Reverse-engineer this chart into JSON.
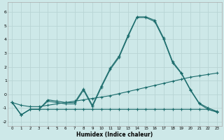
{
  "xlabel": "Humidex (Indice chaleur)",
  "background_color": "#cde8e8",
  "grid_color": "#b8d4d4",
  "line_color": "#1a6b6b",
  "xlim": [
    -0.5,
    23.5
  ],
  "ylim": [
    -2.3,
    6.7
  ],
  "yticks": [
    -2,
    -1,
    0,
    1,
    2,
    3,
    4,
    5,
    6
  ],
  "xticks": [
    0,
    1,
    2,
    3,
    4,
    5,
    6,
    7,
    8,
    9,
    10,
    11,
    12,
    13,
    14,
    15,
    16,
    17,
    18,
    19,
    20,
    21,
    22,
    23
  ],
  "series": [
    {
      "x": [
        0,
        1,
        2,
        3,
        4,
        5,
        6,
        7,
        8,
        9,
        10,
        11,
        12,
        13,
        14,
        15,
        16,
        17,
        18,
        19,
        20,
        21,
        22,
        23
      ],
      "y": [
        -0.6,
        -1.5,
        -1.1,
        -1.1,
        -1.1,
        -1.1,
        -1.1,
        -1.1,
        -1.1,
        -1.1,
        -1.1,
        -1.1,
        -1.1,
        -1.1,
        -1.1,
        -1.1,
        -1.1,
        -1.1,
        -1.1,
        -1.1,
        -1.1,
        -1.1,
        -1.1,
        -1.3
      ]
    },
    {
      "x": [
        0,
        1,
        2,
        3,
        4,
        5,
        6,
        7,
        8,
        9,
        10,
        11,
        12,
        13,
        14,
        15,
        16,
        17,
        18,
        19,
        20,
        21,
        22,
        23
      ],
      "y": [
        -0.6,
        -1.5,
        -1.1,
        -1.1,
        -0.5,
        -0.6,
        -0.7,
        -0.7,
        0.3,
        -0.9,
        0.5,
        1.8,
        2.7,
        4.2,
        5.6,
        5.6,
        5.3,
        4.0,
        2.3,
        1.5,
        0.3,
        -0.7,
        -1.1,
        -1.3
      ]
    },
    {
      "x": [
        0,
        1,
        2,
        3,
        4,
        5,
        6,
        7,
        8,
        9,
        10,
        11,
        12,
        13,
        14,
        15,
        16,
        17,
        18,
        19,
        20,
        21,
        22,
        23
      ],
      "y": [
        -0.6,
        -1.5,
        -1.1,
        -1.1,
        -0.4,
        -0.5,
        -0.6,
        -0.6,
        0.4,
        -0.8,
        0.6,
        1.9,
        2.8,
        4.3,
        5.65,
        5.65,
        5.4,
        4.1,
        2.4,
        1.55,
        0.35,
        -0.65,
        -1.0,
        -1.25
      ]
    },
    {
      "x": [
        0,
        1,
        2,
        3,
        4,
        5,
        6,
        7,
        8,
        9,
        10,
        11,
        12,
        13,
        14,
        15,
        16,
        17,
        18,
        19,
        20,
        21,
        22,
        23
      ],
      "y": [
        -0.6,
        -0.8,
        -0.9,
        -0.9,
        -0.8,
        -0.7,
        -0.6,
        -0.5,
        -0.4,
        -0.3,
        -0.2,
        -0.1,
        0.05,
        0.2,
        0.35,
        0.5,
        0.65,
        0.8,
        0.95,
        1.1,
        1.25,
        1.35,
        1.45,
        1.55
      ]
    }
  ]
}
